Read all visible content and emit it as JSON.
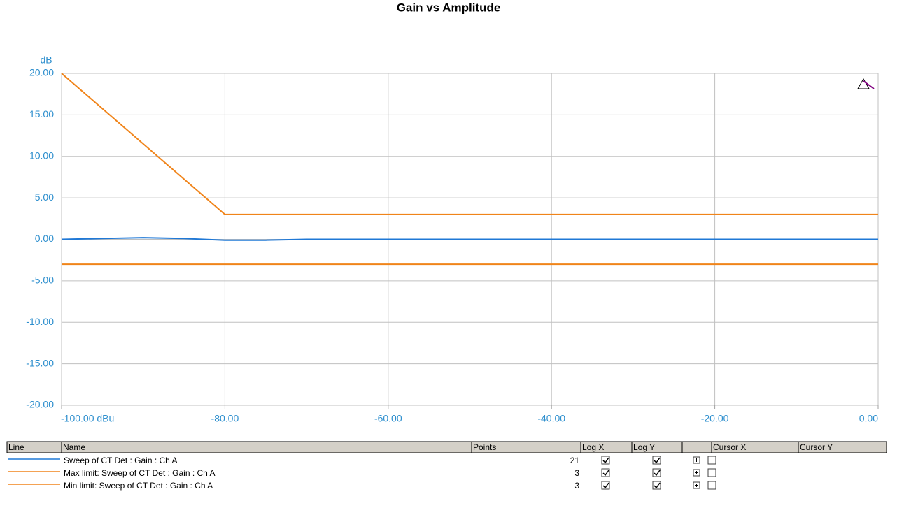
{
  "chart_data": {
    "type": "line",
    "title": "Gain vs Amplitude",
    "y_label": "dB",
    "xlim": [
      -100,
      0
    ],
    "xticks": [
      {
        "value": -100,
        "label": "-100.00 dBu"
      },
      {
        "value": -80,
        "label": "-80.00"
      },
      {
        "value": -60,
        "label": "-60.00"
      },
      {
        "value": -40,
        "label": "-40.00"
      },
      {
        "value": -20,
        "label": "-20.00"
      },
      {
        "value": 0,
        "label": "0.00"
      }
    ],
    "ylim": [
      -20,
      20
    ],
    "yticks": [
      {
        "value": 20,
        "label": "20.00"
      },
      {
        "value": 15,
        "label": "15.00"
      },
      {
        "value": 10,
        "label": "10.00"
      },
      {
        "value": 5,
        "label": "5.00"
      },
      {
        "value": 0,
        "label": "0.00"
      },
      {
        "value": -5,
        "label": "-5.00"
      },
      {
        "value": -10,
        "label": "-10.00"
      },
      {
        "value": -15,
        "label": "-15.00"
      },
      {
        "value": -20,
        "label": "-20.00"
      }
    ],
    "grid": true,
    "series": [
      {
        "name": "Sweep of CT Det : Gain : Ch A",
        "color": "#1f78d6",
        "points": 21,
        "x": [
          -100,
          -95,
          -90,
          -85,
          -80,
          -75,
          -70,
          -65,
          -60,
          -55,
          -50,
          -45,
          -40,
          -35,
          -30,
          -25,
          -20,
          -15,
          -10,
          -5,
          0
        ],
        "values": [
          0.0,
          0.1,
          0.2,
          0.1,
          -0.1,
          -0.1,
          0.0,
          0.0,
          0.0,
          0.0,
          0.0,
          0.0,
          0.0,
          0.0,
          0.0,
          0.0,
          0.0,
          0.0,
          0.0,
          0.0,
          0.0
        ]
      },
      {
        "name": "Max limit: Sweep of CT Det : Gain : Ch A",
        "color": "#f0841a",
        "points": 3,
        "x": [
          -100,
          -80,
          0
        ],
        "values": [
          20,
          3,
          3
        ]
      },
      {
        "name": "Min limit: Sweep of CT Det : Gain : Ch A",
        "color": "#f0841a",
        "points": 3,
        "x": [
          -100,
          -80,
          0
        ],
        "values": [
          -3,
          -3,
          -3
        ]
      }
    ]
  },
  "table": {
    "columns": [
      "Line",
      "Name",
      "Points",
      "Log X",
      "Log Y",
      "Cursor X",
      "Cursor Y"
    ]
  }
}
